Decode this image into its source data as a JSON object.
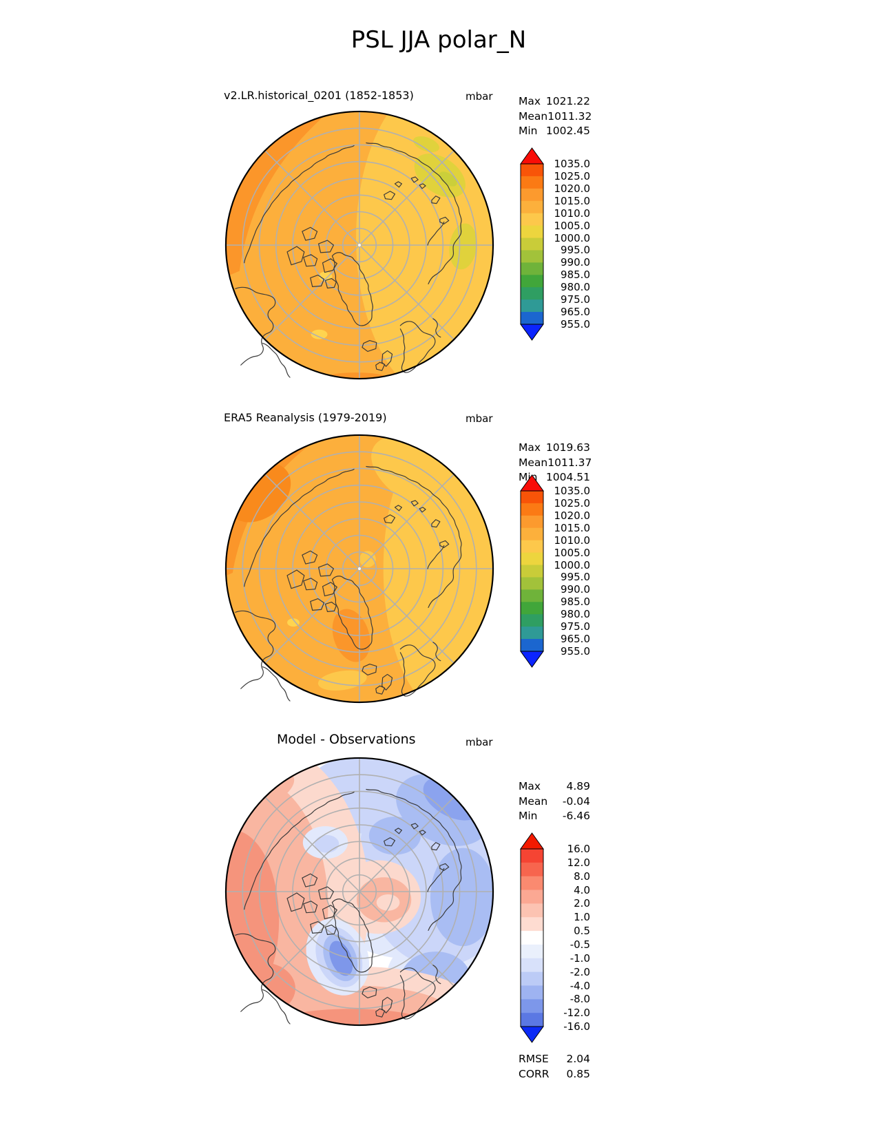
{
  "title": "PSL JJA polar_N",
  "colors": {
    "background": "#ffffff",
    "graticule": "#b0b0b0",
    "coastline": "#3a3a3a",
    "map_border": "#000000",
    "pole_dot": "#ffffff"
  },
  "panels": [
    {
      "subtitle": "v2.LR.historical_0201 (1852-1853)",
      "units": "mbar",
      "stats": [
        {
          "label": "Max",
          "value": "1021.22"
        },
        {
          "label": "Mean",
          "value": "1011.32"
        },
        {
          "label": "Min",
          "value": "1002.45"
        }
      ],
      "colorbar": {
        "extend_top": "#F90D07",
        "extend_bottom": "#0B24FE",
        "segments_top_to_bottom": [
          "#F85408",
          "#FB7A14",
          "#FC9A2E",
          "#FCB03C",
          "#FDC84B",
          "#EDD53E",
          "#C9CC39",
          "#A2C23A",
          "#6FB33A",
          "#41A63A",
          "#2F9E62",
          "#2F9A96",
          "#1B66CF"
        ],
        "labels_top_to_bottom": [
          "1035.0",
          "1025.0",
          "1020.0",
          "1015.0",
          "1010.0",
          "1005.0",
          "1000.0",
          "995.0",
          "990.0",
          "985.0",
          "980.0",
          "975.0",
          "965.0",
          "955.0"
        ]
      },
      "map": {
        "base": "#FCAF3C",
        "yellow": "#FDC84B",
        "olive": "#E0D23C",
        "yellow_green": "#CBCF3A",
        "dark_orange": "#FB962A",
        "spot_yellow": "#FFD44F"
      }
    },
    {
      "subtitle": "ERA5 Reanalysis (1979-2019)",
      "units": "mbar",
      "stats": [
        {
          "label": "Max",
          "value": "1019.63"
        },
        {
          "label": "Mean",
          "value": "1011.37"
        },
        {
          "label": "Min",
          "value": "1004.51"
        }
      ],
      "colorbar": {
        "extend_top": "#F90D07",
        "extend_bottom": "#0B24FE",
        "segments_top_to_bottom": [
          "#F85408",
          "#FB7A14",
          "#FC9A2E",
          "#FCB03C",
          "#FDC84B",
          "#EDD53E",
          "#C9CC39",
          "#A2C23A",
          "#6FB33A",
          "#41A63A",
          "#2F9E62",
          "#2F9A96",
          "#1B66CF"
        ],
        "labels_top_to_bottom": [
          "1035.0",
          "1025.0",
          "1020.0",
          "1015.0",
          "1010.0",
          "1005.0",
          "1000.0",
          "995.0",
          "990.0",
          "985.0",
          "980.0",
          "975.0",
          "965.0",
          "955.0"
        ]
      },
      "map": {
        "base": "#FCAF3C",
        "yellow": "#FDC84B",
        "olive": "#E0D23C",
        "dark_orange": "#FB962A",
        "darker_orange": "#F98A1C",
        "spot_yellow": "#FFD44F"
      }
    },
    {
      "subtitle": "Model - Observations",
      "units": "mbar",
      "stats": [
        {
          "label": "Max",
          "value": "4.89"
        },
        {
          "label": "Mean",
          "value": "-0.04"
        },
        {
          "label": "Min",
          "value": "-6.46"
        }
      ],
      "metrics": [
        {
          "label": "RMSE",
          "value": "2.04"
        },
        {
          "label": "CORR",
          "value": "0.85"
        }
      ],
      "colorbar": {
        "extend_top": "#F41A00",
        "extend_bottom": "#0B2AF6",
        "segments_top_to_bottom": [
          "#F54433",
          "#F7654E",
          "#FA8A70",
          "#FBA893",
          "#FCC3B2",
          "#FEDCD1",
          "#FFFFFF",
          "#EAF0FC",
          "#D8E1FA",
          "#BCCBF6",
          "#9EB3F1",
          "#7D97EA",
          "#5B78E3"
        ],
        "labels_top_to_bottom": [
          "16.0",
          "12.0",
          "8.0",
          "4.0",
          "2.0",
          "1.0",
          "0.5",
          "-0.5",
          "-1.0",
          "-2.0",
          "-4.0",
          "-8.0",
          "-12.0",
          "-16.0"
        ]
      },
      "map": {
        "base": "#FFFFFF",
        "pink_pale": "#FCD9CD",
        "red_light": "#F9B6A1",
        "red_mid": "#F5947C",
        "blue_pale": "#E2E9FC",
        "blue_light": "#CBD6F9",
        "blue_mid": "#A9BDF3",
        "blue_deep": "#8BA3EE",
        "blue_dark": "#7E97EA"
      }
    }
  ],
  "chart_data": [
    {
      "type": "heatmap",
      "variant": "filled_contour_polar_map",
      "panel": "model",
      "title": "v2.LR.historical_0201 (1852-1853)",
      "units": "mbar",
      "projection": "North Polar Stereographic (50N-90N), graticule every 5 deg lat / 45 deg lon",
      "stats": {
        "max": 1021.22,
        "mean": 1011.32,
        "min": 1002.45
      },
      "contour_levels": [
        955.0,
        965.0,
        975.0,
        980.0,
        985.0,
        990.0,
        995.0,
        1000.0,
        1005.0,
        1010.0,
        1015.0,
        1020.0,
        1025.0,
        1035.0
      ],
      "colorbar_extend": "both",
      "legend_position": "right"
    },
    {
      "type": "heatmap",
      "variant": "filled_contour_polar_map",
      "panel": "reference",
      "title": "ERA5 Reanalysis (1979-2019)",
      "units": "mbar",
      "projection": "North Polar Stereographic (50N-90N), graticule every 5 deg lat / 45 deg lon",
      "stats": {
        "max": 1019.63,
        "mean": 1011.37,
        "min": 1004.51
      },
      "contour_levels": [
        955.0,
        965.0,
        975.0,
        980.0,
        985.0,
        990.0,
        995.0,
        1000.0,
        1005.0,
        1010.0,
        1015.0,
        1020.0,
        1025.0,
        1035.0
      ],
      "colorbar_extend": "both",
      "legend_position": "right"
    },
    {
      "type": "heatmap",
      "variant": "filled_contour_polar_map",
      "panel": "difference",
      "title": "Model - Observations",
      "units": "mbar",
      "projection": "North Polar Stereographic (50N-90N), graticule every 5 deg lat / 45 deg lon",
      "stats": {
        "max": 4.89,
        "mean": -0.04,
        "min": -6.46,
        "rmse": 2.04,
        "corr": 0.85
      },
      "contour_levels": [
        -16.0,
        -12.0,
        -8.0,
        -4.0,
        -2.0,
        -1.0,
        -0.5,
        0.5,
        1.0,
        2.0,
        4.0,
        8.0,
        12.0,
        16.0
      ],
      "colorbar_extend": "both",
      "legend_position": "right"
    }
  ]
}
